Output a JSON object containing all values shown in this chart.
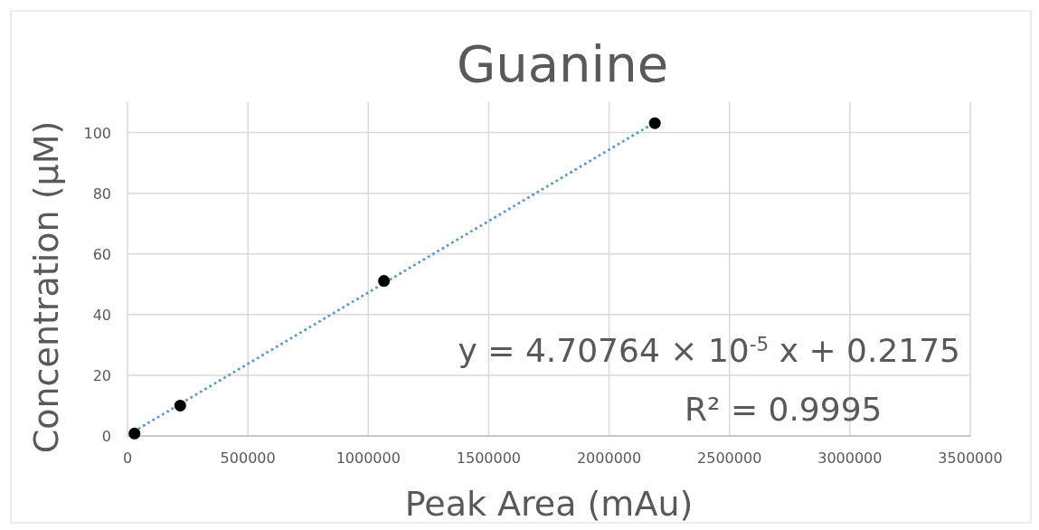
{
  "chart_data": {
    "type": "scatter",
    "title": "Guanine",
    "xlabel": "Peak Area (mAu)",
    "ylabel": "Concentration (µM)",
    "xlim": [
      0,
      3500000
    ],
    "xticks": [
      0,
      500000,
      1000000,
      1500000,
      2000000,
      2500000,
      3000000,
      3500000
    ],
    "ylim": [
      0,
      110
    ],
    "yticks": [
      0,
      20,
      40,
      60,
      80,
      100
    ],
    "grid": true,
    "series": [
      {
        "type": "line",
        "color": "#5b9bd5",
        "line_style": "dotted",
        "marker": "none",
        "x": [
          29000,
          2190000
        ],
        "values": [
          1.6,
          103.3
        ]
      },
      {
        "type": "scatter",
        "color": "#000000",
        "marker": "circle",
        "x": [
          29000,
          219000,
          1065000,
          2190000
        ],
        "values": [
          0.8,
          10.0,
          51.1,
          103.1
        ]
      }
    ],
    "annotations": [
      "y = 4.70764 × 10$^{-5}$ x + 0.2175",
      "R² = 0.9995"
    ]
  }
}
